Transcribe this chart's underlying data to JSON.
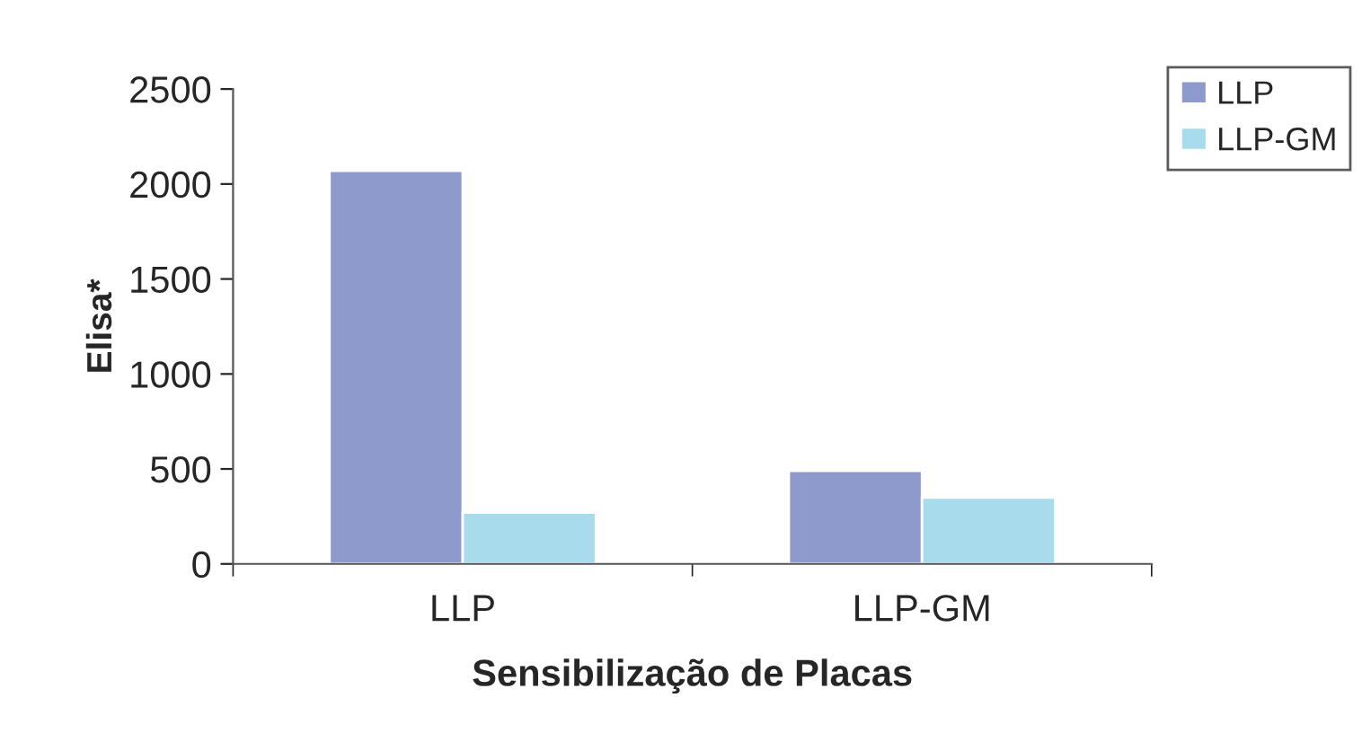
{
  "chart_data": {
    "type": "bar",
    "xlabel": "Sensibilização de Placas",
    "ylabel": "Elisa*",
    "categories": [
      "LLP",
      "LLP-GM"
    ],
    "series": [
      {
        "name": "LLP",
        "color": "#8d9acb",
        "values": [
          2070,
          490
        ]
      },
      {
        "name": "LLP-GM",
        "color": "#a8dced",
        "values": [
          270,
          350
        ]
      }
    ],
    "ylim": [
      0,
      2500
    ],
    "yticks": [
      0,
      500,
      1000,
      1500,
      2000,
      2500
    ],
    "grid": false,
    "legend": "top right"
  }
}
